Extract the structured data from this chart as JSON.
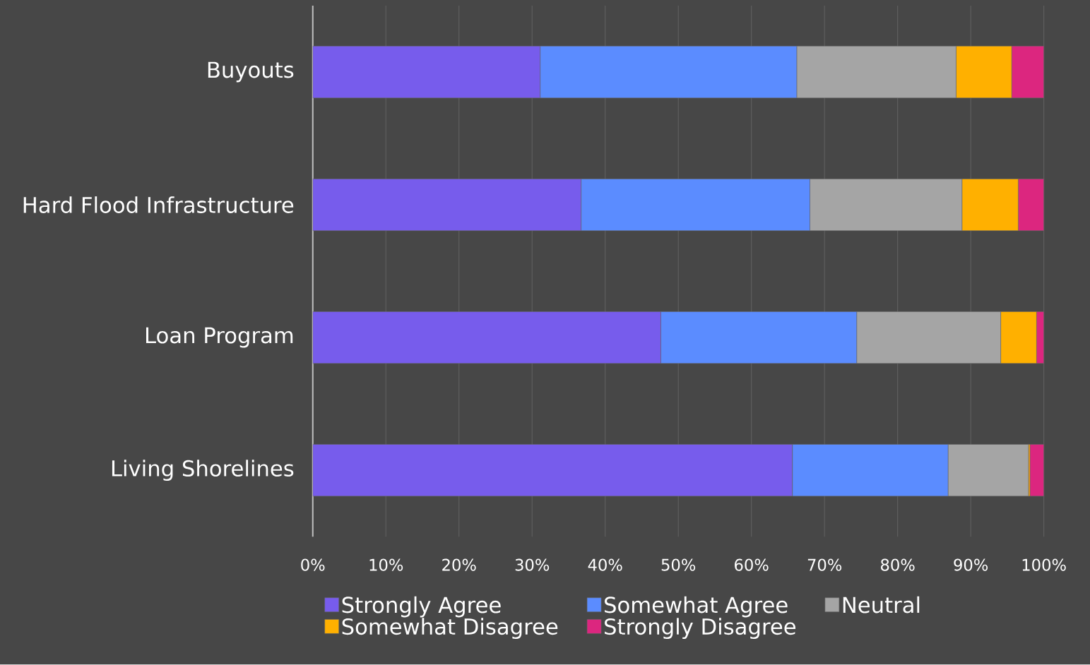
{
  "chart_data": {
    "type": "bar",
    "orientation": "horizontal",
    "stacked": true,
    "categories": [
      "Buyouts",
      "Hard Flood Infrastructure",
      "Loan Program",
      "Living Shorelines"
    ],
    "series": [
      {
        "name": "Strongly Agree",
        "color": "#775cec",
        "values": [
          31.1,
          36.7,
          47.6,
          65.6
        ]
      },
      {
        "name": "Somewhat Agree",
        "color": "#5b8cff",
        "values": [
          35.1,
          31.3,
          26.8,
          21.3
        ]
      },
      {
        "name": "Neutral",
        "color": "#a5a5a5",
        "values": [
          21.8,
          20.8,
          19.7,
          11.0
        ]
      },
      {
        "name": "Somewhat Disagree",
        "color": "#ffb000",
        "values": [
          7.6,
          7.7,
          4.9,
          0.2
        ]
      },
      {
        "name": "Strongly Disagree",
        "color": "#dc267f",
        "values": [
          4.4,
          3.5,
          1.0,
          1.9
        ]
      }
    ],
    "xlim": [
      0,
      100
    ],
    "xticks": [
      {
        "value": 0,
        "label": "0%"
      },
      {
        "value": 10,
        "label": "10%"
      },
      {
        "value": 20,
        "label": "20%"
      },
      {
        "value": 30,
        "label": "30%"
      },
      {
        "value": 40,
        "label": "40%"
      },
      {
        "value": 50,
        "label": "50%"
      },
      {
        "value": 60,
        "label": "60%"
      },
      {
        "value": 70,
        "label": "70%"
      },
      {
        "value": 80,
        "label": "80%"
      },
      {
        "value": 90,
        "label": "90%"
      },
      {
        "value": 100,
        "label": "100%"
      }
    ],
    "grid": "x",
    "legend": "bottom"
  }
}
